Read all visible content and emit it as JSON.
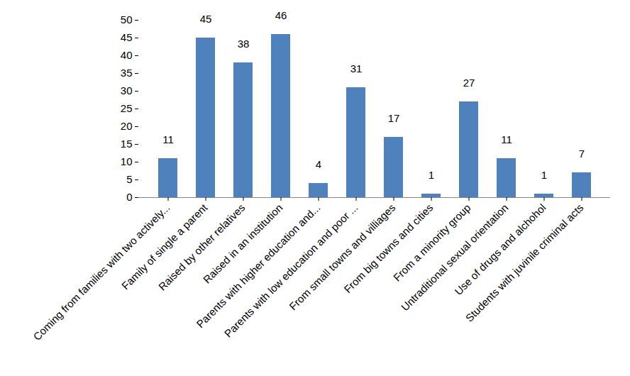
{
  "chart_data": {
    "type": "bar",
    "categories": [
      "Coming from families with two actively...",
      "Family of single a parent",
      "Raised by other relatives",
      "Raised in an institution",
      "Parents with higher education and...",
      "Parents with low education and poor ...",
      "From small towns and villiages",
      "From big towns and cities",
      "From a minority group",
      "Untraditional sexual orientation",
      "Use of drugs and alchohol",
      "Students with juvinile criminal acts"
    ],
    "values": [
      11,
      45,
      38,
      46,
      4,
      31,
      17,
      1,
      27,
      11,
      1,
      7
    ],
    "color": "#4f81bd",
    "ylim": [
      0,
      50
    ],
    "yticks": [
      0,
      5,
      10,
      15,
      20,
      25,
      30,
      35,
      40,
      45,
      50
    ],
    "grid": false,
    "data_labels": true
  }
}
